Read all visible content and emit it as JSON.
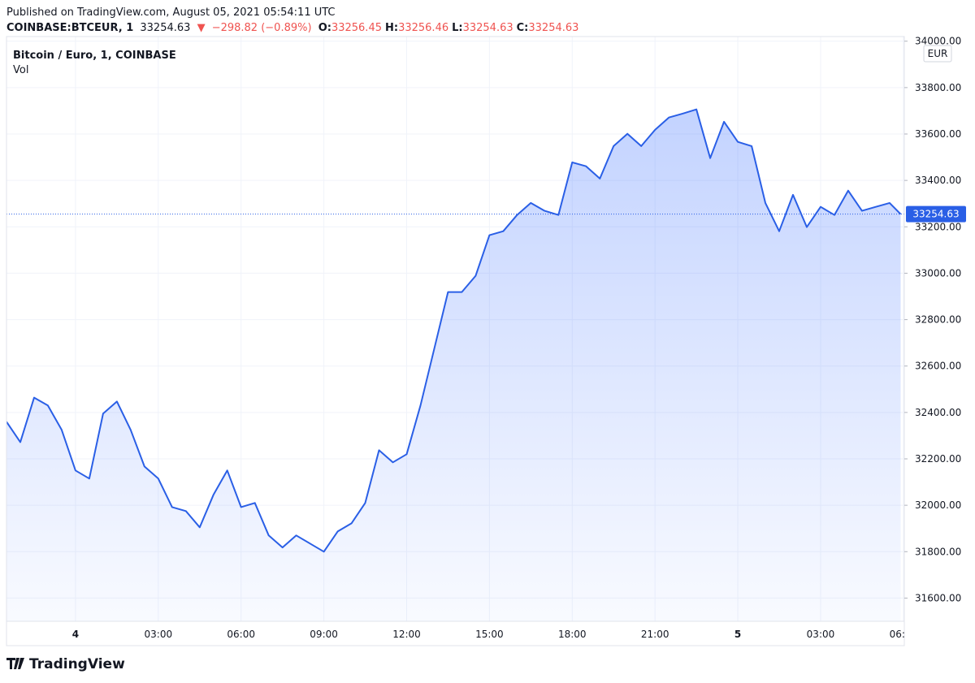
{
  "header": {
    "published": "Published on TradingView.com, August 05, 2021 05:54:11 UTC",
    "symbol": "COINBASE:BTCEUR, 1",
    "last": "33254.63",
    "arrow": "▼",
    "change": "−298.82 (−0.89%)",
    "ohlc": [
      {
        "key": "O:",
        "value": "33256.45"
      },
      {
        "key": "H:",
        "value": "33256.46"
      },
      {
        "key": "L:",
        "value": "33254.63"
      },
      {
        "key": "C:",
        "value": "33254.63"
      }
    ]
  },
  "legend": {
    "title": "Bitcoin / Euro, 1, COINBASE",
    "vol": "Vol"
  },
  "currency": "EUR",
  "footer": {
    "brand": "TradingView"
  },
  "chart_data": {
    "type": "area",
    "color": "#2a5fe6",
    "grid": true,
    "x": [
      "2021-08-03T21:30",
      "2021-08-03T22:00",
      "2021-08-03T22:30",
      "2021-08-03T23:00",
      "2021-08-03T23:30",
      "2021-08-04T00:00",
      "2021-08-04T00:30",
      "2021-08-04T01:00",
      "2021-08-04T01:30",
      "2021-08-04T02:00",
      "2021-08-04T02:30",
      "2021-08-04T03:00",
      "2021-08-04T03:30",
      "2021-08-04T04:00",
      "2021-08-04T04:30",
      "2021-08-04T05:00",
      "2021-08-04T05:30",
      "2021-08-04T06:00",
      "2021-08-04T06:30",
      "2021-08-04T07:00",
      "2021-08-04T07:30",
      "2021-08-04T08:00",
      "2021-08-04T08:30",
      "2021-08-04T09:00",
      "2021-08-04T09:30",
      "2021-08-04T10:00",
      "2021-08-04T10:30",
      "2021-08-04T11:00",
      "2021-08-04T11:30",
      "2021-08-04T12:00",
      "2021-08-04T12:30",
      "2021-08-04T13:00",
      "2021-08-04T13:30",
      "2021-08-04T14:00",
      "2021-08-04T14:30",
      "2021-08-04T15:00",
      "2021-08-04T15:30",
      "2021-08-04T16:00",
      "2021-08-04T16:30",
      "2021-08-04T17:00",
      "2021-08-04T17:30",
      "2021-08-04T18:00",
      "2021-08-04T18:30",
      "2021-08-04T19:00",
      "2021-08-04T19:30",
      "2021-08-04T20:00",
      "2021-08-04T20:30",
      "2021-08-04T21:00",
      "2021-08-04T21:30",
      "2021-08-04T22:00",
      "2021-08-04T22:30",
      "2021-08-04T23:00",
      "2021-08-04T23:30",
      "2021-08-05T00:00",
      "2021-08-05T00:30",
      "2021-08-05T01:00",
      "2021-08-05T01:30",
      "2021-08-05T02:00",
      "2021-08-05T02:30",
      "2021-08-05T03:00",
      "2021-08-05T03:30",
      "2021-08-05T04:00",
      "2021-08-05T04:30",
      "2021-08-05T05:00",
      "2021-08-05T05:30",
      "2021-08-05T05:54"
    ],
    "values": [
      32360,
      32272,
      32464,
      32430,
      32325,
      32150,
      32115,
      32395,
      32447,
      32325,
      32167,
      32115,
      31992,
      31975,
      31905,
      32045,
      32150,
      31992,
      32010,
      31870,
      31818,
      31870,
      31835,
      31800,
      31887,
      31922,
      32010,
      32237,
      32185,
      32220,
      32430,
      32675,
      32919,
      32919,
      32989,
      33164,
      33181,
      33251,
      33303,
      33269,
      33251,
      33478,
      33461,
      33408,
      33548,
      33601,
      33548,
      33618,
      33671,
      33688,
      33706,
      33496,
      33653,
      33566,
      33548,
      33303,
      33181,
      33338,
      33199,
      33286,
      33251,
      33356,
      33269,
      33286,
      33303,
      33254.63
    ],
    "xlim": [
      "2021-08-03T21:30",
      "2021-08-05T06:02"
    ],
    "xticks": [
      {
        "value": "2021-08-04T00:00",
        "label": "4"
      },
      {
        "value": "2021-08-04T03:00",
        "label": "03:00"
      },
      {
        "value": "2021-08-04T06:00",
        "label": "06:00"
      },
      {
        "value": "2021-08-04T09:00",
        "label": "09:00"
      },
      {
        "value": "2021-08-04T12:00",
        "label": "12:00"
      },
      {
        "value": "2021-08-04T15:00",
        "label": "15:00"
      },
      {
        "value": "2021-08-04T18:00",
        "label": "18:00"
      },
      {
        "value": "2021-08-04T21:00",
        "label": "21:00"
      },
      {
        "value": "2021-08-05T00:00",
        "label": "5"
      },
      {
        "value": "2021-08-05T03:00",
        "label": "03:00"
      },
      {
        "value": "2021-08-05T06:00",
        "label": "06:00"
      }
    ],
    "ylim": [
      31500,
      34020
    ],
    "yticks": [
      {
        "value": 31600,
        "label": "31600.00"
      },
      {
        "value": 31800,
        "label": "31800.00"
      },
      {
        "value": 32000,
        "label": "32000.00"
      },
      {
        "value": 32200,
        "label": "32200.00"
      },
      {
        "value": 32400,
        "label": "32400.00"
      },
      {
        "value": 32600,
        "label": "32600.00"
      },
      {
        "value": 32800,
        "label": "32800.00"
      },
      {
        "value": 33000,
        "label": "33000.00"
      },
      {
        "value": 33200,
        "label": "33200.00"
      },
      {
        "value": 33400,
        "label": "33400.00"
      },
      {
        "value": 33600,
        "label": "33600.00"
      },
      {
        "value": 33800,
        "label": "33800.00"
      },
      {
        "value": 34000,
        "label": "34000.00"
      }
    ]
  }
}
